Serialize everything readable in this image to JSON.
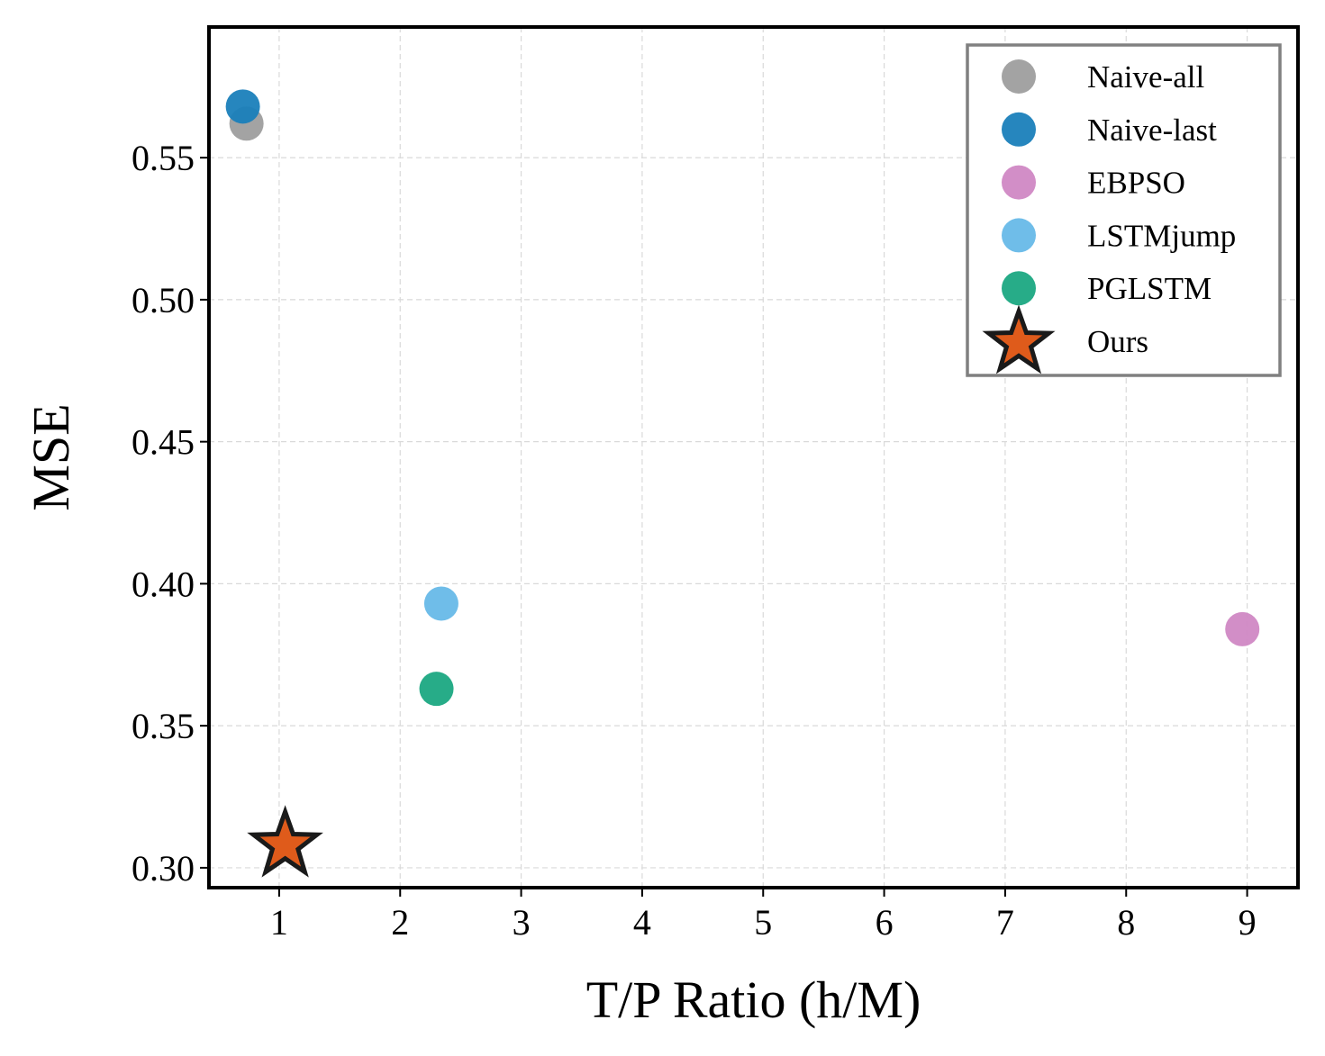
{
  "chart_data": {
    "type": "scatter",
    "title": "",
    "xlabel": "T/P Ratio (h/M)",
    "ylabel": "MSE",
    "xlim": [
      0.42,
      9.42
    ],
    "ylim": [
      0.293,
      0.596
    ],
    "xticks": [
      1,
      2,
      3,
      4,
      5,
      6,
      7,
      8,
      9
    ],
    "xtick_labels": [
      "1",
      "2",
      "3",
      "4",
      "5",
      "6",
      "7",
      "8",
      "9"
    ],
    "yticks": [
      0.3,
      0.35,
      0.4,
      0.45,
      0.5,
      0.55
    ],
    "ytick_labels": [
      "0.30",
      "0.35",
      "0.40",
      "0.45",
      "0.50",
      "0.55"
    ],
    "grid": true,
    "legend_position": "top-right",
    "series": [
      {
        "name": "Naive-all",
        "marker": "circle",
        "color": "#9e9e9e",
        "x": [
          0.73
        ],
        "y": [
          0.562
        ]
      },
      {
        "name": "Naive-last",
        "marker": "circle",
        "color": "#1a80bb",
        "x": [
          0.7
        ],
        "y": [
          0.568
        ]
      },
      {
        "name": "EBPSO",
        "marker": "circle",
        "color": "#d088c4",
        "x": [
          8.96
        ],
        "y": [
          0.384
        ]
      },
      {
        "name": "LSTMjump",
        "marker": "circle",
        "color": "#67b9e8",
        "x": [
          2.34
        ],
        "y": [
          0.393
        ]
      },
      {
        "name": "PGLSTM",
        "marker": "circle",
        "color": "#1ba882",
        "x": [
          2.3
        ],
        "y": [
          0.363
        ]
      },
      {
        "name": "Ours",
        "marker": "star",
        "color": "#df5b1b",
        "edge_color": "#1a1a1a",
        "x": [
          1.05
        ],
        "y": [
          0.308
        ]
      }
    ]
  }
}
